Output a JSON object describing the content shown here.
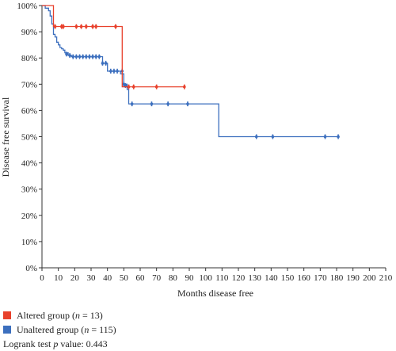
{
  "chart_data": {
    "type": "line",
    "subtype": "kaplan-meier step",
    "title": "",
    "xlabel": "Months disease free",
    "ylabel": "Disease free survival",
    "xlim": [
      0,
      210
    ],
    "ylim": [
      0,
      100
    ],
    "xticks": [
      "0",
      "10",
      "20",
      "30",
      "40",
      "50",
      "60",
      "70",
      "80",
      "90",
      "100",
      "110",
      "120",
      "130",
      "140",
      "150",
      "160",
      "170",
      "180",
      "190",
      "200",
      "210"
    ],
    "yticks": [
      "0%",
      "10%",
      "20%",
      "30%",
      "40%",
      "50%",
      "60%",
      "70%",
      "80%",
      "90%",
      "100%"
    ],
    "grid": false,
    "series": [
      {
        "name": "Altered group",
        "color": "#e8412c",
        "steps": [
          [
            0,
            100
          ],
          [
            7,
            100
          ],
          [
            7,
            92
          ],
          [
            49,
            92
          ],
          [
            49,
            69
          ],
          [
            87,
            69
          ]
        ],
        "censored": [
          [
            8,
            92
          ],
          [
            12,
            92
          ],
          [
            13,
            92
          ],
          [
            21,
            92
          ],
          [
            24,
            92
          ],
          [
            27,
            92
          ],
          [
            31,
            92
          ],
          [
            33,
            92
          ],
          [
            45,
            92
          ],
          [
            53,
            69
          ],
          [
            56,
            69
          ],
          [
            70,
            69
          ],
          [
            87,
            69
          ]
        ]
      },
      {
        "name": "Unaltered group",
        "color": "#3c6fbe",
        "steps": [
          [
            0,
            100
          ],
          [
            2,
            100
          ],
          [
            2,
            99
          ],
          [
            4,
            99
          ],
          [
            4,
            98
          ],
          [
            5,
            98
          ],
          [
            5,
            96
          ],
          [
            6,
            96
          ],
          [
            6,
            93
          ],
          [
            7,
            93
          ],
          [
            7,
            89
          ],
          [
            8,
            89
          ],
          [
            8,
            88
          ],
          [
            9,
            88
          ],
          [
            9,
            86
          ],
          [
            10,
            86
          ],
          [
            10,
            85
          ],
          [
            11,
            85
          ],
          [
            11,
            84
          ],
          [
            12,
            84
          ],
          [
            12,
            83.5
          ],
          [
            13,
            83.5
          ],
          [
            13,
            83
          ],
          [
            14,
            83
          ],
          [
            14,
            82
          ],
          [
            16,
            82
          ],
          [
            16,
            81
          ],
          [
            18,
            81
          ],
          [
            18,
            80.5
          ],
          [
            37,
            80.5
          ],
          [
            37,
            78
          ],
          [
            40,
            78
          ],
          [
            40,
            75
          ],
          [
            48,
            75
          ],
          [
            48,
            74
          ],
          [
            50,
            74
          ],
          [
            50,
            70
          ],
          [
            52,
            70
          ],
          [
            52,
            68
          ],
          [
            53,
            68
          ],
          [
            53,
            62.5
          ],
          [
            108,
            62.5
          ],
          [
            108,
            50
          ],
          [
            181,
            50
          ]
        ],
        "censored": [
          [
            15,
            81.5
          ],
          [
            17,
            81
          ],
          [
            19,
            80.5
          ],
          [
            21,
            80.5
          ],
          [
            23,
            80.5
          ],
          [
            25,
            80.5
          ],
          [
            27,
            80.5
          ],
          [
            29,
            80.5
          ],
          [
            31,
            80.5
          ],
          [
            33,
            80.5
          ],
          [
            35,
            80.5
          ],
          [
            37,
            78
          ],
          [
            39,
            78
          ],
          [
            42,
            75
          ],
          [
            44,
            75
          ],
          [
            46,
            75
          ],
          [
            49,
            75
          ],
          [
            50,
            70
          ],
          [
            51,
            69.5
          ],
          [
            55,
            62.5
          ],
          [
            67,
            62.5
          ],
          [
            77,
            62.5
          ],
          [
            89,
            62.5
          ],
          [
            131,
            50
          ],
          [
            141,
            50
          ],
          [
            173,
            50
          ],
          [
            181,
            50
          ]
        ]
      }
    ]
  },
  "legend": {
    "items": [
      {
        "label": "Altered group (",
        "n_symbol": "n",
        "n_value": " = 13)",
        "color": "#e8412c"
      },
      {
        "label": "Unaltered group (",
        "n_symbol": "n",
        "n_value": " = 115)",
        "color": "#3c6fbe"
      }
    ]
  },
  "note": {
    "prefix": "Logrank test ",
    "p_symbol": "p",
    "suffix": " value: 0.443"
  }
}
